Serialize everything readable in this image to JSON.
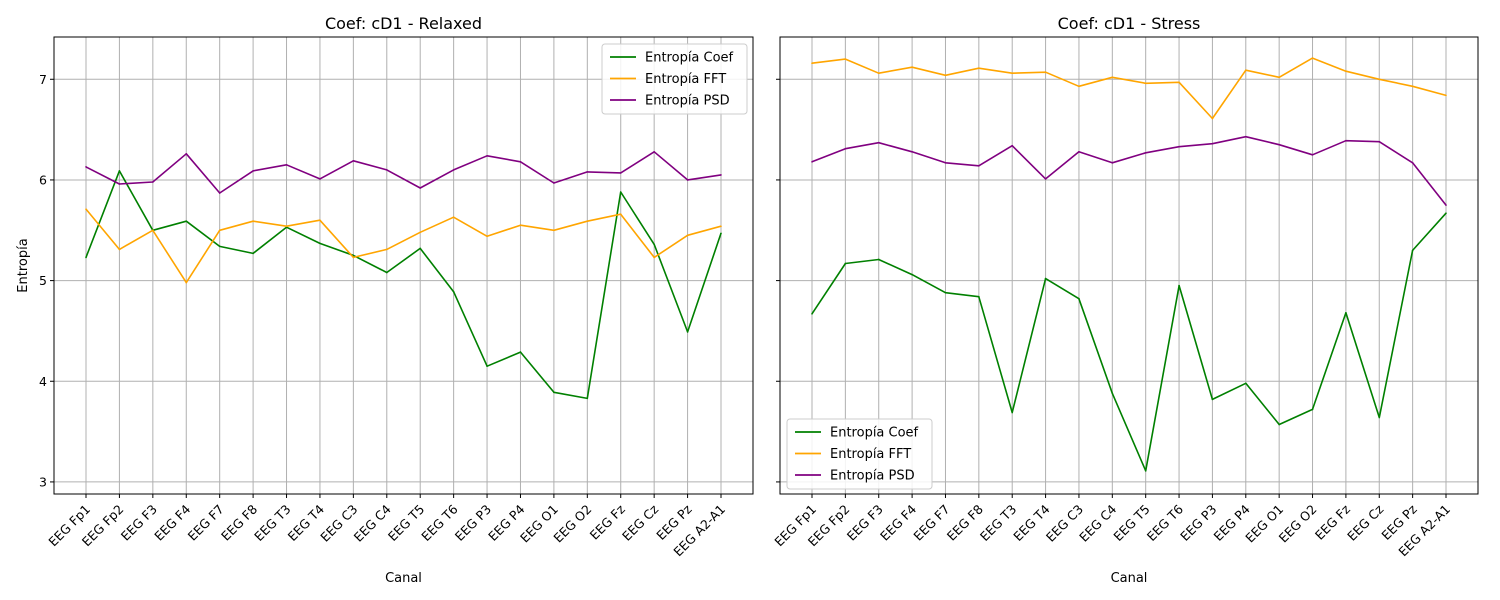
{
  "chart_data": [
    {
      "type": "line",
      "title": "Coef: cD1 - Relaxed",
      "xlabel": "Canal",
      "ylabel": "Entropía",
      "ylim": [
        2.88,
        7.42
      ],
      "yticks": [
        3,
        4,
        5,
        6,
        7
      ],
      "grid": true,
      "legend": "top-right",
      "categories": [
        "EEG Fp1",
        "EEG Fp2",
        "EEG F3",
        "EEG F4",
        "EEG F7",
        "EEG F8",
        "EEG T3",
        "EEG T4",
        "EEG C3",
        "EEG C4",
        "EEG T5",
        "EEG T6",
        "EEG P3",
        "EEG P4",
        "EEG O1",
        "EEG O2",
        "EEG Fz",
        "EEG Cz",
        "EEG Pz",
        "EEG A2-A1"
      ],
      "series": [
        {
          "name": "Entropía Coef",
          "color": "#008000",
          "values": [
            5.23,
            6.09,
            5.5,
            5.59,
            5.34,
            5.27,
            5.53,
            5.37,
            5.25,
            5.08,
            5.32,
            4.89,
            4.15,
            4.29,
            3.89,
            3.83,
            5.88,
            5.36,
            4.49,
            5.47
          ]
        },
        {
          "name": "Entropía FFT",
          "color": "#FFA500",
          "values": [
            5.71,
            5.31,
            5.5,
            4.98,
            5.5,
            5.59,
            5.54,
            5.6,
            5.23,
            5.31,
            5.48,
            5.63,
            5.44,
            5.55,
            5.5,
            5.59,
            5.66,
            5.23,
            5.45,
            5.54
          ]
        },
        {
          "name": "Entropía PSD",
          "color": "#800080",
          "values": [
            6.13,
            5.96,
            5.98,
            6.26,
            5.87,
            6.09,
            6.15,
            6.01,
            6.19,
            6.1,
            5.92,
            6.1,
            6.24,
            6.18,
            5.97,
            6.08,
            6.07,
            6.28,
            6.0,
            6.05
          ]
        }
      ]
    },
    {
      "type": "line",
      "title": "Coef: cD1 - Stress",
      "xlabel": "Canal",
      "ylabel": "",
      "ylim": [
        2.88,
        7.42
      ],
      "yticks": [
        3,
        4,
        5,
        6,
        7
      ],
      "grid": true,
      "legend": "bottom-left",
      "categories": [
        "EEG Fp1",
        "EEG Fp2",
        "EEG F3",
        "EEG F4",
        "EEG F7",
        "EEG F8",
        "EEG T3",
        "EEG T4",
        "EEG C3",
        "EEG C4",
        "EEG T5",
        "EEG T6",
        "EEG P3",
        "EEG P4",
        "EEG O1",
        "EEG O2",
        "EEG Fz",
        "EEG Cz",
        "EEG Pz",
        "EEG A2-A1"
      ],
      "series": [
        {
          "name": "Entropía Coef",
          "color": "#008000",
          "values": [
            4.67,
            5.17,
            5.21,
            5.06,
            4.88,
            4.84,
            3.69,
            5.02,
            4.82,
            3.88,
            3.11,
            4.95,
            3.82,
            3.98,
            3.57,
            3.72,
            4.68,
            3.64,
            5.3,
            5.67
          ]
        },
        {
          "name": "Entropía FFT",
          "color": "#FFA500",
          "values": [
            7.16,
            7.2,
            7.06,
            7.12,
            7.04,
            7.11,
            7.06,
            7.07,
            6.93,
            7.02,
            6.96,
            6.97,
            6.61,
            7.09,
            7.02,
            7.21,
            7.08,
            7.0,
            6.93,
            6.84
          ]
        },
        {
          "name": "Entropía PSD",
          "color": "#800080",
          "values": [
            6.18,
            6.31,
            6.37,
            6.28,
            6.17,
            6.14,
            6.34,
            6.01,
            6.28,
            6.17,
            6.27,
            6.33,
            6.36,
            6.43,
            6.35,
            6.25,
            6.39,
            6.38,
            6.17,
            5.75
          ]
        }
      ]
    }
  ]
}
